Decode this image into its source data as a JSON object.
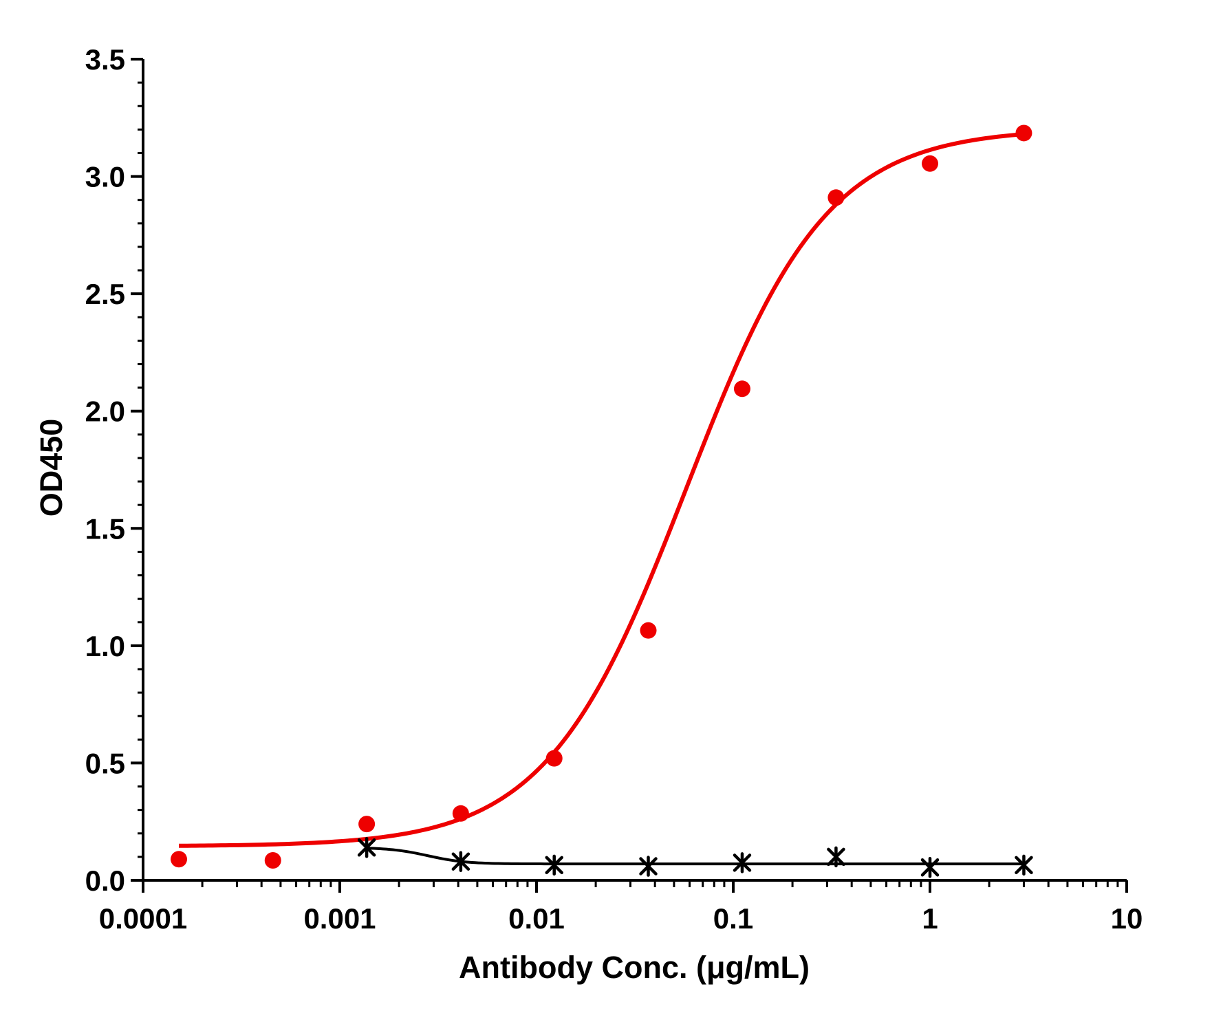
{
  "chart_data": {
    "type": "scatter",
    "title": "",
    "xlabel": "Antibody Conc. (μg/mL)",
    "ylabel": "OD450",
    "x_scale": "log",
    "xlim": [
      0.0001,
      10
    ],
    "ylim": [
      0,
      3.5
    ],
    "x_ticks": [
      {
        "value": 0.0001,
        "label": "0.0001"
      },
      {
        "value": 0.001,
        "label": "0.001"
      },
      {
        "value": 0.01,
        "label": "0.01"
      },
      {
        "value": 0.1,
        "label": "0.1"
      },
      {
        "value": 1,
        "label": "1"
      },
      {
        "value": 10,
        "label": "10"
      }
    ],
    "y_ticks": [
      {
        "value": 0.0,
        "label": "0.0"
      },
      {
        "value": 0.5,
        "label": "0.5"
      },
      {
        "value": 1.0,
        "label": "1.0"
      },
      {
        "value": 1.5,
        "label": "1.5"
      },
      {
        "value": 2.0,
        "label": "2.0"
      },
      {
        "value": 2.5,
        "label": "2.5"
      },
      {
        "value": 3.0,
        "label": "3.0"
      },
      {
        "value": 3.5,
        "label": "3.5"
      }
    ],
    "grid": false,
    "legend": "none",
    "series": [
      {
        "color": "#ee0000",
        "marker": "circle",
        "x": [
          0.000152,
          0.000457,
          0.00137,
          0.00412,
          0.0123,
          0.037,
          0.111,
          0.333,
          1,
          3
        ],
        "y": [
          0.09,
          0.085,
          0.24,
          0.285,
          0.52,
          1.065,
          2.095,
          2.91,
          3.055,
          3.185
        ],
        "fit": {
          "bottom": 0.145,
          "top": 3.205,
          "ec50": 0.058,
          "hill": 1.22,
          "x_range": [
            0.000152,
            3
          ]
        }
      },
      {
        "color": "#000000",
        "marker": "star",
        "x": [
          0.00137,
          0.00412,
          0.0123,
          0.037,
          0.111,
          0.333,
          1,
          3
        ],
        "y": [
          0.14,
          0.08,
          0.065,
          0.06,
          0.075,
          0.1,
          0.055,
          0.065
        ],
        "fit": {
          "bottom": 0.07,
          "top": 0.14,
          "ec50": 0.0028,
          "hill": -4.5,
          "x_range": [
            0.00137,
            3
          ]
        }
      }
    ]
  }
}
